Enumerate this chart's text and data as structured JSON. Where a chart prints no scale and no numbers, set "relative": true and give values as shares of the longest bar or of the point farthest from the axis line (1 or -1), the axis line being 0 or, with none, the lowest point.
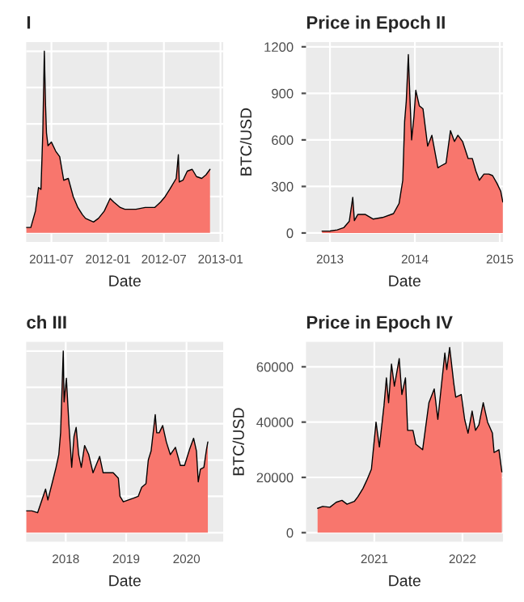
{
  "chart_data": [
    {
      "type": "area",
      "title": "I",
      "xlabel": "Date",
      "relative": true,
      "grid": true,
      "tick_labels": "x",
      "xlim": [
        "2011-04-10",
        "2013-01-10"
      ],
      "xticks": [
        "2011-07",
        "2012-01",
        "2012-07",
        "2013-01"
      ],
      "x": [
        "2011-04-10",
        "2011-04-25",
        "2011-05-10",
        "2011-05-20",
        "2011-05-28",
        "2011-06-03",
        "2011-06-08",
        "2011-06-12",
        "2011-06-15",
        "2011-06-20",
        "2011-07-01",
        "2011-07-15",
        "2011-07-28",
        "2011-08-10",
        "2011-08-25",
        "2011-09-10",
        "2011-09-25",
        "2011-10-10",
        "2011-10-20",
        "2011-11-15",
        "2011-12-01",
        "2011-12-20",
        "2012-01-08",
        "2012-01-20",
        "2012-02-10",
        "2012-02-25",
        "2012-03-10",
        "2012-04-01",
        "2012-05-01",
        "2012-06-01",
        "2012-06-20",
        "2012-07-05",
        "2012-07-20",
        "2012-08-10",
        "2012-08-17",
        "2012-08-20",
        "2012-09-01",
        "2012-09-15",
        "2012-10-01",
        "2012-10-15",
        "2012-11-01",
        "2012-11-15",
        "2012-11-28"
      ],
      "series": [
        {
          "color": "#f8766d",
          "values": [
            0.03,
            0.03,
            0.12,
            0.25,
            0.24,
            0.55,
            1.0,
            0.7,
            0.55,
            0.48,
            0.5,
            0.45,
            0.42,
            0.29,
            0.3,
            0.2,
            0.14,
            0.1,
            0.08,
            0.06,
            0.08,
            0.12,
            0.19,
            0.17,
            0.14,
            0.13,
            0.13,
            0.13,
            0.14,
            0.14,
            0.17,
            0.2,
            0.24,
            0.3,
            0.43,
            0.28,
            0.29,
            0.34,
            0.35,
            0.31,
            0.3,
            0.32,
            0.35
          ]
        }
      ]
    },
    {
      "type": "area",
      "title": "Price in Epoch II",
      "xlabel": "Date",
      "ylabel": "BTC/USD",
      "grid": true,
      "xlim": [
        "2012-09-20",
        "2015-01-15"
      ],
      "xticks": [
        "2013",
        "2014",
        "2015"
      ],
      "ylim": [
        -58,
        1230
      ],
      "yticks": [
        0,
        300,
        600,
        900,
        1200
      ],
      "x": [
        "2012-11-28",
        "2013-01-01",
        "2013-02-01",
        "2013-03-01",
        "2013-03-25",
        "2013-04-09",
        "2013-04-16",
        "2013-05-01",
        "2013-06-01",
        "2013-07-05",
        "2013-08-15",
        "2013-10-01",
        "2013-10-25",
        "2013-11-10",
        "2013-11-18",
        "2013-11-25",
        "2013-12-04",
        "2013-12-10",
        "2013-12-18",
        "2013-12-28",
        "2014-01-05",
        "2014-01-20",
        "2014-02-05",
        "2014-02-25",
        "2014-03-15",
        "2014-04-10",
        "2014-04-20",
        "2014-05-15",
        "2014-06-03",
        "2014-06-20",
        "2014-07-05",
        "2014-07-25",
        "2014-08-18",
        "2014-09-05",
        "2014-09-20",
        "2014-10-05",
        "2014-10-25",
        "2014-11-15",
        "2014-12-01",
        "2014-12-20",
        "2015-01-05",
        "2015-01-14"
      ],
      "series": [
        {
          "color": "#f8766d",
          "values": [
            12,
            13,
            20,
            34,
            75,
            230,
            80,
            120,
            120,
            90,
            100,
            125,
            190,
            340,
            720,
            850,
            1150,
            900,
            600,
            750,
            920,
            820,
            800,
            560,
            630,
            420,
            430,
            450,
            660,
            590,
            630,
            590,
            480,
            480,
            400,
            340,
            380,
            380,
            370,
            320,
            270,
            200
          ]
        }
      ]
    },
    {
      "type": "area",
      "title": "ch III",
      "xlabel": "Date",
      "relative": true,
      "grid": true,
      "tick_labels": "x",
      "xlim": [
        "2017-05-07",
        "2020-08-10"
      ],
      "xticks": [
        "2018",
        "2019",
        "2020"
      ],
      "x": [
        "2017-05-07",
        "2017-06-10",
        "2017-07-15",
        "2017-08-10",
        "2017-09-01",
        "2017-09-15",
        "2017-10-10",
        "2017-11-01",
        "2017-11-20",
        "2017-12-01",
        "2017-12-17",
        "2017-12-22",
        "2018-01-05",
        "2018-01-20",
        "2018-02-06",
        "2018-02-20",
        "2018-03-05",
        "2018-03-20",
        "2018-04-05",
        "2018-04-25",
        "2018-05-20",
        "2018-06-15",
        "2018-07-25",
        "2018-08-15",
        "2018-09-15",
        "2018-10-15",
        "2018-11-15",
        "2018-11-25",
        "2018-12-15",
        "2019-01-15",
        "2019-02-15",
        "2019-03-15",
        "2019-04-05",
        "2019-05-01",
        "2019-05-15",
        "2019-06-01",
        "2019-06-26",
        "2019-07-05",
        "2019-07-20",
        "2019-08-10",
        "2019-09-01",
        "2019-09-25",
        "2019-10-26",
        "2019-11-25",
        "2019-12-20",
        "2020-01-20",
        "2020-02-13",
        "2020-03-01",
        "2020-03-12",
        "2020-03-25",
        "2020-04-15",
        "2020-05-01",
        "2020-05-09"
      ],
      "series": [
        {
          "color": "#f8766d",
          "values": [
            0.12,
            0.12,
            0.11,
            0.18,
            0.24,
            0.18,
            0.27,
            0.35,
            0.43,
            0.55,
            1.0,
            0.72,
            0.85,
            0.6,
            0.36,
            0.53,
            0.58,
            0.43,
            0.36,
            0.48,
            0.43,
            0.33,
            0.42,
            0.33,
            0.33,
            0.33,
            0.3,
            0.2,
            0.17,
            0.18,
            0.19,
            0.2,
            0.25,
            0.27,
            0.4,
            0.45,
            0.65,
            0.55,
            0.55,
            0.59,
            0.5,
            0.43,
            0.47,
            0.37,
            0.37,
            0.46,
            0.52,
            0.45,
            0.28,
            0.35,
            0.36,
            0.46,
            0.5
          ]
        }
      ]
    },
    {
      "type": "area",
      "title": "Price in Epoch IV",
      "xlabel": "Date",
      "ylabel": "BTC/USD",
      "grid": true,
      "xlim": [
        "2020-03-24",
        "2022-06-18"
      ],
      "xticks": [
        "2021",
        "2022"
      ],
      "ylim": [
        -3300,
        69000
      ],
      "yticks": [
        0,
        20000,
        40000,
        60000
      ],
      "x": [
        "2020-05-11",
        "2020-06-01",
        "2020-07-01",
        "2020-07-27",
        "2020-08-20",
        "2020-09-10",
        "2020-10-10",
        "2020-10-25",
        "2020-11-15",
        "2020-12-01",
        "2020-12-20",
        "2021-01-08",
        "2021-01-22",
        "2021-02-10",
        "2021-02-20",
        "2021-03-01",
        "2021-03-13",
        "2021-03-25",
        "2021-04-14",
        "2021-04-25",
        "2021-05-10",
        "2021-05-19",
        "2021-06-10",
        "2021-06-22",
        "2021-07-20",
        "2021-08-15",
        "2021-09-06",
        "2021-09-21",
        "2021-10-20",
        "2021-10-28",
        "2021-11-09",
        "2021-11-26",
        "2021-12-04",
        "2021-12-27",
        "2022-01-10",
        "2022-01-24",
        "2022-02-10",
        "2022-02-24",
        "2022-03-10",
        "2022-03-28",
        "2022-04-15",
        "2022-05-05",
        "2022-05-12",
        "2022-06-01",
        "2022-06-13"
      ],
      "series": [
        {
          "color": "#f8766d",
          "values": [
            8800,
            9500,
            9200,
            11000,
            11700,
            10300,
            11300,
            13000,
            16000,
            19000,
            23000,
            40000,
            31000,
            46000,
            56000,
            47000,
            61000,
            53000,
            63000,
            50000,
            56000,
            37000,
            37000,
            32000,
            30000,
            47000,
            52000,
            41000,
            65000,
            59000,
            67000,
            54000,
            49000,
            50000,
            41000,
            36000,
            44000,
            37000,
            39000,
            47000,
            40000,
            36000,
            29000,
            30000,
            22000
          ]
        }
      ]
    }
  ]
}
